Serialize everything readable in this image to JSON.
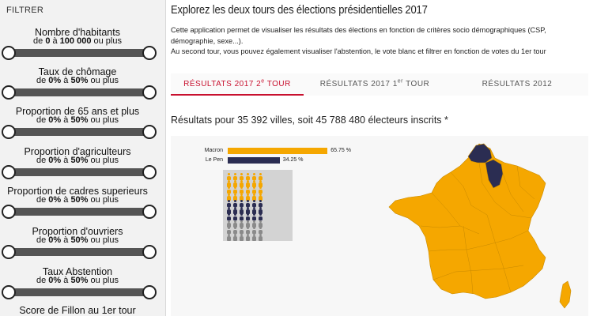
{
  "sidebar": {
    "title": "FILTRER",
    "filters": [
      {
        "label": "Nombre d'habitants",
        "range_prefix": "de ",
        "min": "0",
        "mid": " à ",
        "max": "100 000",
        "suffix": " ou plus"
      },
      {
        "label": "Taux de chômage",
        "range_prefix": "de ",
        "min": "0%",
        "mid": " à ",
        "max": "50%",
        "suffix": " ou plus"
      },
      {
        "label": "Proportion de 65 ans et plus",
        "range_prefix": "de ",
        "min": "0%",
        "mid": " à ",
        "max": "50%",
        "suffix": " ou plus"
      },
      {
        "label": "Proportion d'agriculteurs",
        "range_prefix": "de ",
        "min": "0%",
        "mid": " à ",
        "max": "50%",
        "suffix": " ou plus"
      },
      {
        "label": "Proportion de cadres superieurs",
        "range_prefix": "de ",
        "min": "0%",
        "mid": " à ",
        "max": "50%",
        "suffix": " ou plus"
      },
      {
        "label": "Proportion d'ouvriers",
        "range_prefix": "de ",
        "min": "0%",
        "mid": " à ",
        "max": "50%",
        "suffix": " ou plus"
      },
      {
        "label": "Taux Abstention",
        "range_prefix": "de ",
        "min": "0%",
        "mid": " à ",
        "max": "50%",
        "suffix": " ou plus"
      },
      {
        "label": "Score de Fillon au 1er tour",
        "range_prefix": "",
        "min": "",
        "mid": "",
        "max": "",
        "suffix": ""
      }
    ]
  },
  "header": {
    "title": "Explorez les deux tours des élections présidentielles 2017",
    "intro_line1": "Cette application permet de visualiser les résultats des élections en fonction de critères socio démographiques (CSP, démographie, sexe...).",
    "intro_line2": "Au second tour, vous pouvez également visualiser l'abstention, le vote blanc et filtrer en fonction de votes du 1er tour"
  },
  "tabs": [
    {
      "label": "RÉSULTATS 2017 2",
      "sup": "e",
      "label_end": " TOUR",
      "active": true
    },
    {
      "label": "RÉSULTATS 2017 1",
      "sup": "er",
      "label_end": " TOUR",
      "active": false
    },
    {
      "label": "RÉSULTATS 2012",
      "sup": "",
      "label_end": "",
      "active": false
    }
  ],
  "results": {
    "summary": "Résultats pour 35 392 villes, soit 45 788 480 électeurs inscrits *"
  },
  "chart_data": {
    "type": "bar",
    "categories": [
      "Macron",
      "Le Pen"
    ],
    "values": [
      65.75,
      34.25
    ],
    "value_labels": [
      "65.75 %",
      "34.25 %"
    ],
    "colors": [
      "#f5a700",
      "#2b2d52"
    ],
    "xlim": [
      0,
      100
    ]
  },
  "pictogram": {
    "colors": {
      "macron": "#f5a700",
      "lepen": "#2b2d52",
      "other": "#8a8a8a"
    },
    "counts": {
      "macron": 24,
      "lepen": 18,
      "other": 18
    }
  },
  "map": {
    "colors": {
      "macron": "#f5a700",
      "lepen": "#2b2d52",
      "border": "#c98a00"
    }
  }
}
